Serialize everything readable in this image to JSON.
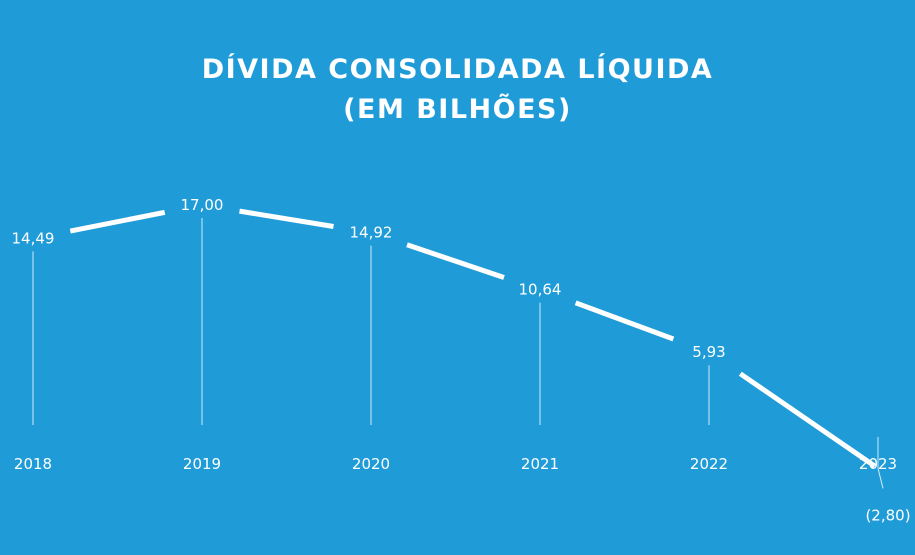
{
  "chart_data": {
    "type": "line",
    "title_line1": "DÍVIDA CONSOLIDADA LÍQUIDA",
    "title_line2": "(EM BILHÕES)",
    "categories": [
      "2018",
      "2019",
      "2020",
      "2021",
      "2022",
      "2023"
    ],
    "values": [
      14.49,
      17.0,
      14.92,
      10.64,
      5.93,
      -2.8
    ],
    "data_labels": [
      "14,49",
      "17,00",
      "14,92",
      "10,64",
      "5,93",
      "(2,80)"
    ],
    "xlabel": "",
    "ylabel": "",
    "grid": false,
    "legend": "none",
    "colors": {
      "background": "#1f9cd8",
      "line": "#ffffff"
    }
  }
}
